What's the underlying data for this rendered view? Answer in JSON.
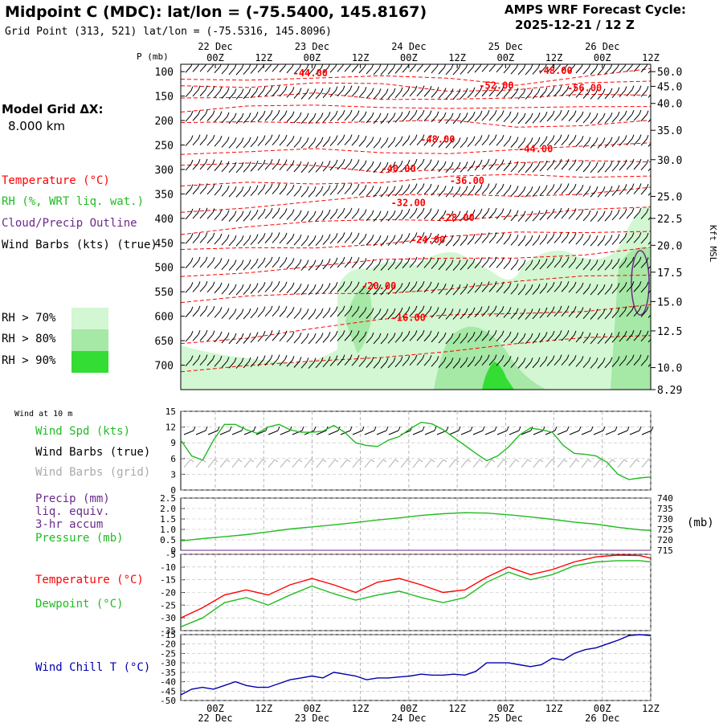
{
  "header": {
    "title": "Midpoint C (MDC):  lat/lon = (-75.5400, 145.8167)",
    "grid_point": "Grid Point (313, 521) lat/lon = (-75.5316, 145.8096)",
    "cycle_label": "AMPS WRF Forecast Cycle:",
    "cycle_value": "2025-12-21 / 12  Z"
  },
  "model_grid": {
    "label": "Model Grid ΔX:",
    "value": "8.000 km"
  },
  "legend": {
    "temperature": "Temperature (°C)",
    "rh": "RH (%, WRT liq. wat.)",
    "cloud": "Cloud/Precip Outline",
    "wind": "Wind Barbs (kts) (true)",
    "rh70": "RH > 70%",
    "rh80": "RH > 80%",
    "rh90": "RH > 90%"
  },
  "colors": {
    "temperature": "#ff0000",
    "rh": "#22bb22",
    "cloud": "#6a2a8a",
    "wind": "#000000",
    "wind_grid": "#aaaaaa",
    "precip": "#6a2a8a",
    "windchill": "#0000aa",
    "rh70": "#d2f7d2",
    "rh80": "#a6e8a6",
    "rh90": "#33dd33"
  },
  "time_axis": {
    "ticks": [
      "00Z",
      "12Z",
      "00Z",
      "12Z",
      "00Z",
      "12Z",
      "00Z",
      "12Z",
      "00Z",
      "12Z"
    ],
    "dates": [
      "22 Dec",
      "23 Dec",
      "24 Dec",
      "25 Dec",
      "26 Dec"
    ]
  },
  "surface_panel_title": "Wind at 10 m",
  "panel_labels": {
    "wind_spd": "Wind Spd (kts)",
    "wind_barbs_true": "Wind Barbs (true)",
    "wind_barbs_grid": "Wind Barbs (grid)",
    "precip1": "Precip (mm)",
    "precip2": "liq. equiv.",
    "precip3": "3-hr accum",
    "pressure": "Pressure (mb)",
    "pressure_unit": "(mb)",
    "temperature": "Temperature (°C)",
    "dewpoint": "Dewpoint (°C)",
    "windchill": "Wind Chill T (°C)"
  },
  "chart_data": [
    {
      "type": "area",
      "name": "vertical cross-section",
      "ylabel": "P (mb)",
      "y2label": "Kft MSL",
      "pressure_ticks": [
        "100",
        "150",
        "200",
        "250",
        "300",
        "350",
        "400",
        "450",
        "500",
        "550",
        "600",
        "650",
        "700"
      ],
      "kft_ticks": [
        "50.0",
        "45.0",
        "40.0",
        "35.0",
        "30.0",
        "25.0",
        "22.5",
        "20.0",
        "17.5",
        "15.0",
        "12.5",
        "10.0",
        "8.29"
      ],
      "kft_tick_pressures": [
        100,
        130,
        165,
        220,
        280,
        355,
        400,
        455,
        510,
        570,
        630,
        705,
        750
      ],
      "ylim": [
        85,
        750
      ],
      "temperature_labels": [
        "-44.00",
        "-48.00",
        "-52.00",
        "-56.00",
        "-48.00",
        "-44.00",
        "-40.00",
        "-36.00",
        "-32.00",
        "-28.00",
        "-24.00",
        "-20.00",
        "-16.00"
      ],
      "temperature_label_positions": [
        [
          9,
          110
        ],
        [
          34,
          105
        ],
        [
          28,
          135
        ],
        [
          37,
          140
        ],
        [
          22,
          245
        ],
        [
          32,
          265
        ],
        [
          18,
          305
        ],
        [
          25,
          330
        ],
        [
          19,
          375
        ],
        [
          24,
          405
        ],
        [
          21,
          450
        ],
        [
          16,
          545
        ],
        [
          19,
          610
        ]
      ],
      "temperature_contours": [
        {
          "label": "-44",
          "y": [
            118,
            112,
            110,
            115,
            114,
            122,
            110,
            100
          ]
        },
        {
          "label": "-48",
          "y": [
            128,
            126,
            124,
            130,
            135,
            134,
            128,
            124
          ]
        },
        {
          "label": "-52",
          "y": [
            148,
            152,
            150,
            155,
            150,
            158,
            152,
            146
          ]
        },
        {
          "label": "-56",
          "y": [
            180,
            176,
            172,
            168,
            174,
            180,
            172,
            165
          ]
        },
        {
          "label": "-52b",
          "y": [
            210,
            206,
            200,
            198,
            205,
            212,
            204,
            198
          ]
        },
        {
          "label": "-48",
          "y": [
            265,
            258,
            262,
            268,
            262,
            255,
            258,
            250
          ]
        },
        {
          "label": "-44",
          "y": [
            285,
            290,
            296,
            300,
            298,
            292,
            286,
            280
          ]
        },
        {
          "label": "-40",
          "y": [
            340,
            330,
            325,
            322,
            318,
            315,
            312,
            308
          ]
        },
        {
          "label": "-36",
          "y": [
            385,
            372,
            362,
            358,
            354,
            350,
            346,
            340
          ]
        },
        {
          "label": "-32",
          "y": [
            430,
            422,
            412,
            402,
            398,
            394,
            388,
            380
          ]
        },
        {
          "label": "-28",
          "y": [
            470,
            462,
            455,
            448,
            440,
            434,
            428,
            420
          ]
        },
        {
          "label": "-24",
          "y": [
            515,
            505,
            498,
            490,
            484,
            476,
            470,
            462
          ]
        },
        {
          "label": "-20",
          "y": [
            575,
            565,
            555,
            548,
            540,
            532,
            524,
            516
          ]
        },
        {
          "label": "-16",
          "y": [
            650,
            640,
            625,
            612,
            602,
            592,
            584,
            575
          ]
        },
        {
          "label": "-12",
          "y": [
            720,
            705,
            690,
            678,
            668,
            660,
            650,
            640
          ]
        }
      ],
      "wind_levels": [
        100,
        150,
        200,
        250,
        300,
        350,
        400,
        450,
        500,
        550,
        600,
        650,
        700
      ]
    },
    {
      "type": "line",
      "name": "wind speed 10 m",
      "ylabel": "Wind Spd (kts)",
      "ylim": [
        0,
        15
      ],
      "yticks": [
        "0",
        "3",
        "6",
        "9",
        "12",
        "15"
      ],
      "x_hours": [
        0,
        3,
        6,
        9,
        12,
        15,
        18,
        21,
        24,
        27,
        30,
        33,
        36,
        39,
        42,
        45,
        48,
        51,
        54,
        57,
        60,
        63,
        66,
        69,
        72,
        75,
        78,
        81,
        84,
        87,
        90,
        93,
        96,
        99,
        102,
        105,
        108,
        111,
        114,
        117,
        120,
        123,
        126,
        129
      ],
      "values": [
        9.5,
        6.5,
        5.7,
        9.5,
        12.5,
        12.5,
        11.5,
        10.8,
        12,
        12.5,
        11.5,
        11,
        11,
        11.2,
        12.3,
        11,
        9,
        8.5,
        8.3,
        9.5,
        10.2,
        11.7,
        12.9,
        12.6,
        11.5,
        10,
        8.5,
        7,
        5.6,
        6.5,
        8.2,
        10.5,
        11.8,
        11.5,
        11,
        8.5,
        7,
        6.8,
        6.5,
        5.3,
        3,
        2,
        2.3,
        2.5
      ],
      "barbs_true_speed": 11,
      "barbs_grid_speed": 5
    },
    {
      "type": "line",
      "name": "precip and pressure",
      "ylabel_left": "Precip (mm)",
      "ylabel_right": "Pressure (mb)",
      "ylim_left": [
        0,
        2.5
      ],
      "yticks_left": [
        "0",
        "0.5",
        "1.0",
        "1.5",
        "2.0",
        "2.5"
      ],
      "ylim_right": [
        715,
        740
      ],
      "yticks_right": [
        "715",
        "720",
        "725",
        "730",
        "735",
        "740"
      ],
      "x_hours": [
        0,
        6,
        12,
        18,
        24,
        30,
        36,
        42,
        48,
        54,
        60,
        66,
        72,
        78,
        84,
        90,
        96,
        102,
        108,
        114,
        120,
        126,
        129
      ],
      "pressure": [
        719.5,
        720.6,
        721.5,
        722.5,
        723.8,
        725.2,
        726.2,
        727.2,
        728.3,
        729.5,
        730.5,
        731.7,
        732.5,
        733,
        732.8,
        732,
        731,
        729.8,
        728.5,
        727.5,
        726,
        724.8,
        724.5
      ],
      "precip": [
        0,
        0,
        0,
        0,
        0,
        0,
        0,
        0,
        0,
        0,
        0,
        0,
        0,
        0,
        0,
        0,
        0,
        0,
        0,
        0,
        0,
        0,
        0
      ]
    },
    {
      "type": "line",
      "name": "temperature and dewpoint",
      "ylim": [
        -35,
        -5
      ],
      "yticks": [
        "-35",
        "-30",
        "-25",
        "-20",
        "-15",
        "-10",
        "-5"
      ],
      "x_hours": [
        0,
        6,
        12,
        18,
        24,
        30,
        36,
        42,
        48,
        54,
        60,
        66,
        72,
        78,
        84,
        90,
        96,
        102,
        108,
        114,
        120,
        126,
        129
      ],
      "series": [
        {
          "name": "Temperature (°C)",
          "values": [
            -30,
            -26,
            -21,
            -19,
            -21,
            -17,
            -14.5,
            -17,
            -20,
            -16,
            -14.5,
            -17,
            -20,
            -19,
            -14,
            -10,
            -13,
            -11,
            -8,
            -6,
            -5.3,
            -5.5,
            -6.5
          ]
        },
        {
          "name": "Dewpoint (°C)",
          "values": [
            -33.5,
            -30,
            -24,
            -22,
            -25,
            -21,
            -17.5,
            -20.5,
            -23,
            -21,
            -19.5,
            -22,
            -24,
            -22,
            -16,
            -12,
            -15,
            -13,
            -9.5,
            -8,
            -7.5,
            -7.5,
            -8
          ]
        }
      ]
    },
    {
      "type": "line",
      "name": "wind chill",
      "ylim": [
        -50,
        -15
      ],
      "yticks": [
        "-50",
        "-45",
        "-40",
        "-35",
        "-30",
        "-25",
        "-20",
        "-15"
      ],
      "x_hours": [
        0,
        3,
        6,
        9,
        12,
        15,
        18,
        21,
        24,
        27,
        30,
        33,
        36,
        39,
        42,
        45,
        48,
        51,
        54,
        57,
        60,
        63,
        66,
        69,
        72,
        75,
        78,
        81,
        84,
        87,
        90,
        93,
        96,
        99,
        102,
        105,
        108,
        111,
        114,
        117,
        120,
        123,
        126,
        129
      ],
      "values": [
        -47,
        -44,
        -43,
        -44,
        -42,
        -40,
        -42,
        -43,
        -43,
        -41,
        -39,
        -38,
        -37,
        -38,
        -35,
        -36,
        -37,
        -39,
        -38,
        -38,
        -37.5,
        -37,
        -36,
        -36.5,
        -36.5,
        -36,
        -36.5,
        -34.5,
        -30,
        -30,
        -30,
        -31,
        -32,
        -31,
        -27.5,
        -28.5,
        -25,
        -23,
        -22,
        -20,
        -18,
        -15.5,
        -15,
        -15.5
      ]
    }
  ]
}
